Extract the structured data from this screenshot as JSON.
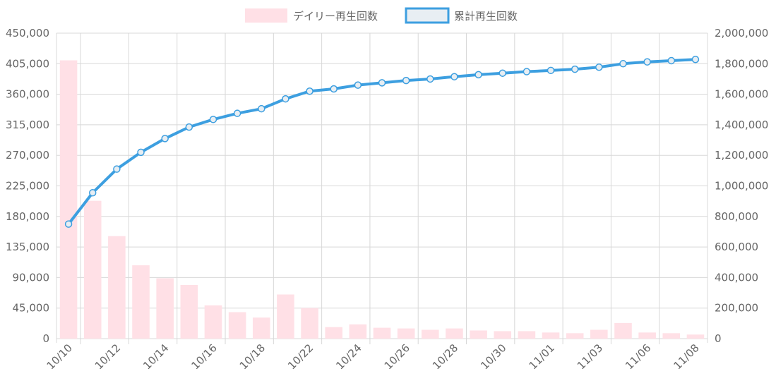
{
  "colors": {
    "daily_fill": "#ffe0e6",
    "cumulative_line": "#3d9fe0",
    "cumulative_legend_fill": "#e8eef3",
    "grid": "#d8d8d8",
    "axis_text": "#666666"
  },
  "legend": {
    "placement": "top-center",
    "daily_label": "デイリー再生回数",
    "cumulative_label": "累計再生回数"
  },
  "chart_data": {
    "type": "bar",
    "combo": "bar + line (dual y-axis)",
    "dates": [
      "10/10",
      "10/11",
      "10/12",
      "10/13",
      "10/14",
      "10/15",
      "10/16",
      "10/17",
      "10/18",
      "10/19",
      "10/22",
      "10/23",
      "10/24",
      "10/25",
      "10/26",
      "10/27",
      "10/28",
      "10/29",
      "10/30",
      "10/31",
      "11/01",
      "11/02",
      "11/03",
      "11/04",
      "11/06",
      "11/07",
      "11/08"
    ],
    "x_tick_labels": [
      "10/10",
      "10/12",
      "10/14",
      "10/16",
      "10/18",
      "10/22",
      "10/24",
      "10/26",
      "10/28",
      "10/30",
      "11/01",
      "11/03",
      "11/06",
      "11/08"
    ],
    "series": [
      {
        "name": "デイリー再生回数",
        "type": "bar",
        "axis": "left",
        "values": [
          410000,
          203000,
          151000,
          108000,
          89000,
          79000,
          49000,
          39000,
          31000,
          65000,
          45000,
          17000,
          21000,
          16000,
          15000,
          13000,
          15000,
          12000,
          11000,
          11000,
          9000,
          8000,
          13000,
          23000,
          9000,
          8000,
          6000
        ]
      },
      {
        "name": "累計再生回数",
        "type": "line",
        "axis": "right",
        "values": [
          750000,
          955000,
          1110000,
          1220000,
          1310000,
          1385000,
          1435000,
          1475000,
          1505000,
          1570000,
          1620000,
          1635000,
          1660000,
          1675000,
          1690000,
          1700000,
          1715000,
          1728000,
          1738000,
          1748000,
          1756000,
          1764000,
          1777000,
          1800000,
          1812000,
          1820000,
          1828000
        ]
      }
    ],
    "y_left": {
      "min": 0,
      "max": 450000,
      "ticks": [
        "0",
        "45,000",
        "90,000",
        "135,000",
        "180,000",
        "225,000",
        "270,000",
        "315,000",
        "360,000",
        "405,000",
        "450,000"
      ]
    },
    "y_right": {
      "min": 0,
      "max": 2000000,
      "ticks": [
        "0",
        "200,000",
        "400,000",
        "600,000",
        "800,000",
        "1,000,000",
        "1,200,000",
        "1,400,000",
        "1,600,000",
        "1,800,000",
        "2,000,000"
      ]
    },
    "grid": true
  }
}
